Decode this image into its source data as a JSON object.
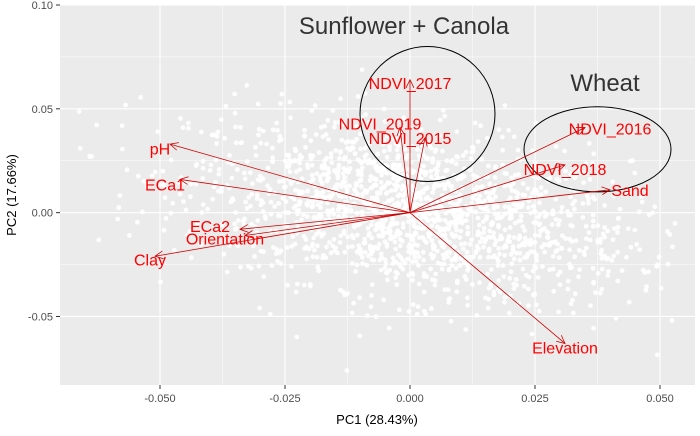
{
  "chart_data": {
    "type": "scatter",
    "subtype": "pca-biplot",
    "xlabel": "PC1 (28.43%)",
    "ylabel": "PC2 (17.66%)",
    "xlim": [
      -0.07,
      0.057
    ],
    "ylim": [
      -0.083,
      0.1
    ],
    "x_ticks": [
      -0.05,
      -0.025,
      0.0,
      0.025,
      0.05
    ],
    "x_tick_labels": [
      "-0.050",
      "-0.025",
      "0.000",
      "0.025",
      "0.050"
    ],
    "y_ticks": [
      -0.05,
      0.0,
      0.05,
      0.1
    ],
    "y_tick_labels": [
      "-0.05",
      "0.00",
      "0.05",
      "0.10"
    ],
    "grid": true,
    "legend": "none",
    "colors": {
      "panel": "#ebebeb",
      "gridline": "#ffffff",
      "points": "#ffffff",
      "loadings": "#cc0000",
      "loading_labels": "#ff0000",
      "group_labels": "#333333"
    },
    "origin": [
      0.0,
      0.0
    ],
    "loadings": [
      {
        "name": "NDVI_2017",
        "x": 0.0,
        "y": 0.064,
        "lx": 0.0,
        "ly": 0.0625
      },
      {
        "name": "NDVI_2019",
        "x": -0.002,
        "y": 0.041,
        "lx": -0.006,
        "ly": 0.043
      },
      {
        "name": "NDVI_2015",
        "x": 0.003,
        "y": 0.036,
        "lx": 0.0,
        "ly": 0.036
      },
      {
        "name": "NDVI_2016",
        "x": 0.035,
        "y": 0.041,
        "lx": 0.04,
        "ly": 0.0405
      },
      {
        "name": "NDVI_2018",
        "x": 0.031,
        "y": 0.023,
        "lx": 0.031,
        "ly": 0.021
      },
      {
        "name": "Sand",
        "x": 0.04,
        "y": 0.011,
        "lx": 0.044,
        "ly": 0.011
      },
      {
        "name": "pH",
        "x": -0.048,
        "y": 0.033,
        "lx": -0.05,
        "ly": 0.031
      },
      {
        "name": "ECa1",
        "x": -0.046,
        "y": 0.016,
        "lx": -0.049,
        "ly": 0.0135
      },
      {
        "name": "ECa2",
        "x": -0.034,
        "y": -0.008,
        "lx": -0.04,
        "ly": -0.0065
      },
      {
        "name": "Orientation",
        "x": -0.033,
        "y": -0.011,
        "lx": -0.037,
        "ly": -0.0125
      },
      {
        "name": "Clay",
        "x": -0.051,
        "y": -0.021,
        "lx": -0.052,
        "ly": -0.0225
      },
      {
        "name": "Elevation",
        "x": 0.031,
        "y": -0.063,
        "lx": 0.031,
        "ly": -0.065
      }
    ],
    "groups": [
      {
        "label": "Sunflower + Canola",
        "cx": 0.0035,
        "cy": 0.0475,
        "rx": 0.0135,
        "ry": 0.0325,
        "lx": -0.0012,
        "ly": 0.086
      },
      {
        "label": "Wheat",
        "cx": 0.0375,
        "cy": 0.0305,
        "rx": 0.0147,
        "ry": 0.0205,
        "lx": 0.039,
        "ly": 0.0585
      }
    ],
    "point_cloud": {
      "n": 1700,
      "description": "score points",
      "x_mean": 0.0,
      "x_sd": 0.022,
      "y_slope": -0.35,
      "y_sd": 0.02
    }
  }
}
